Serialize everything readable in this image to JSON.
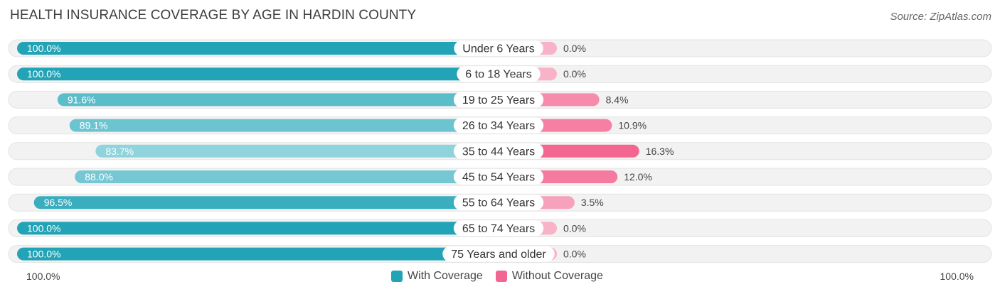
{
  "header": {
    "title": "HEALTH INSURANCE COVERAGE BY AGE IN HARDIN COUNTY",
    "source": "Source: ZipAtlas.com"
  },
  "axis": {
    "left_label": "100.0%",
    "right_label": "100.0%"
  },
  "legend": {
    "with_label": "With Coverage",
    "without_label": "Without Coverage"
  },
  "colors": {
    "with_dark": "#22a3b6",
    "with_light": "#8fd3dc",
    "without_dark": "#f46692",
    "without_light": "#f8b3c8",
    "track": "#f2f2f2"
  },
  "chart_data": {
    "type": "bar",
    "title": "HEALTH INSURANCE COVERAGE BY AGE IN HARDIN COUNTY",
    "categories": [
      "Under 6 Years",
      "6 to 18 Years",
      "19 to 25 Years",
      "26 to 34 Years",
      "35 to 44 Years",
      "45 to 54 Years",
      "55 to 64 Years",
      "65 to 74 Years",
      "75 Years and older"
    ],
    "series": [
      {
        "name": "With Coverage",
        "values": [
          100.0,
          100.0,
          91.6,
          89.1,
          83.7,
          88.0,
          96.5,
          100.0,
          100.0
        ],
        "labels": [
          "100.0%",
          "100.0%",
          "91.6%",
          "89.1%",
          "83.7%",
          "88.0%",
          "96.5%",
          "100.0%",
          "100.0%"
        ]
      },
      {
        "name": "Without Coverage",
        "values": [
          0.0,
          0.0,
          8.4,
          10.9,
          16.3,
          12.0,
          3.5,
          0.0,
          0.0
        ],
        "labels": [
          "0.0%",
          "0.0%",
          "8.4%",
          "10.9%",
          "16.3%",
          "12.0%",
          "3.5%",
          "0.0%",
          "0.0%"
        ]
      }
    ],
    "xlim": [
      0,
      100
    ],
    "legend": "bottom-center"
  }
}
